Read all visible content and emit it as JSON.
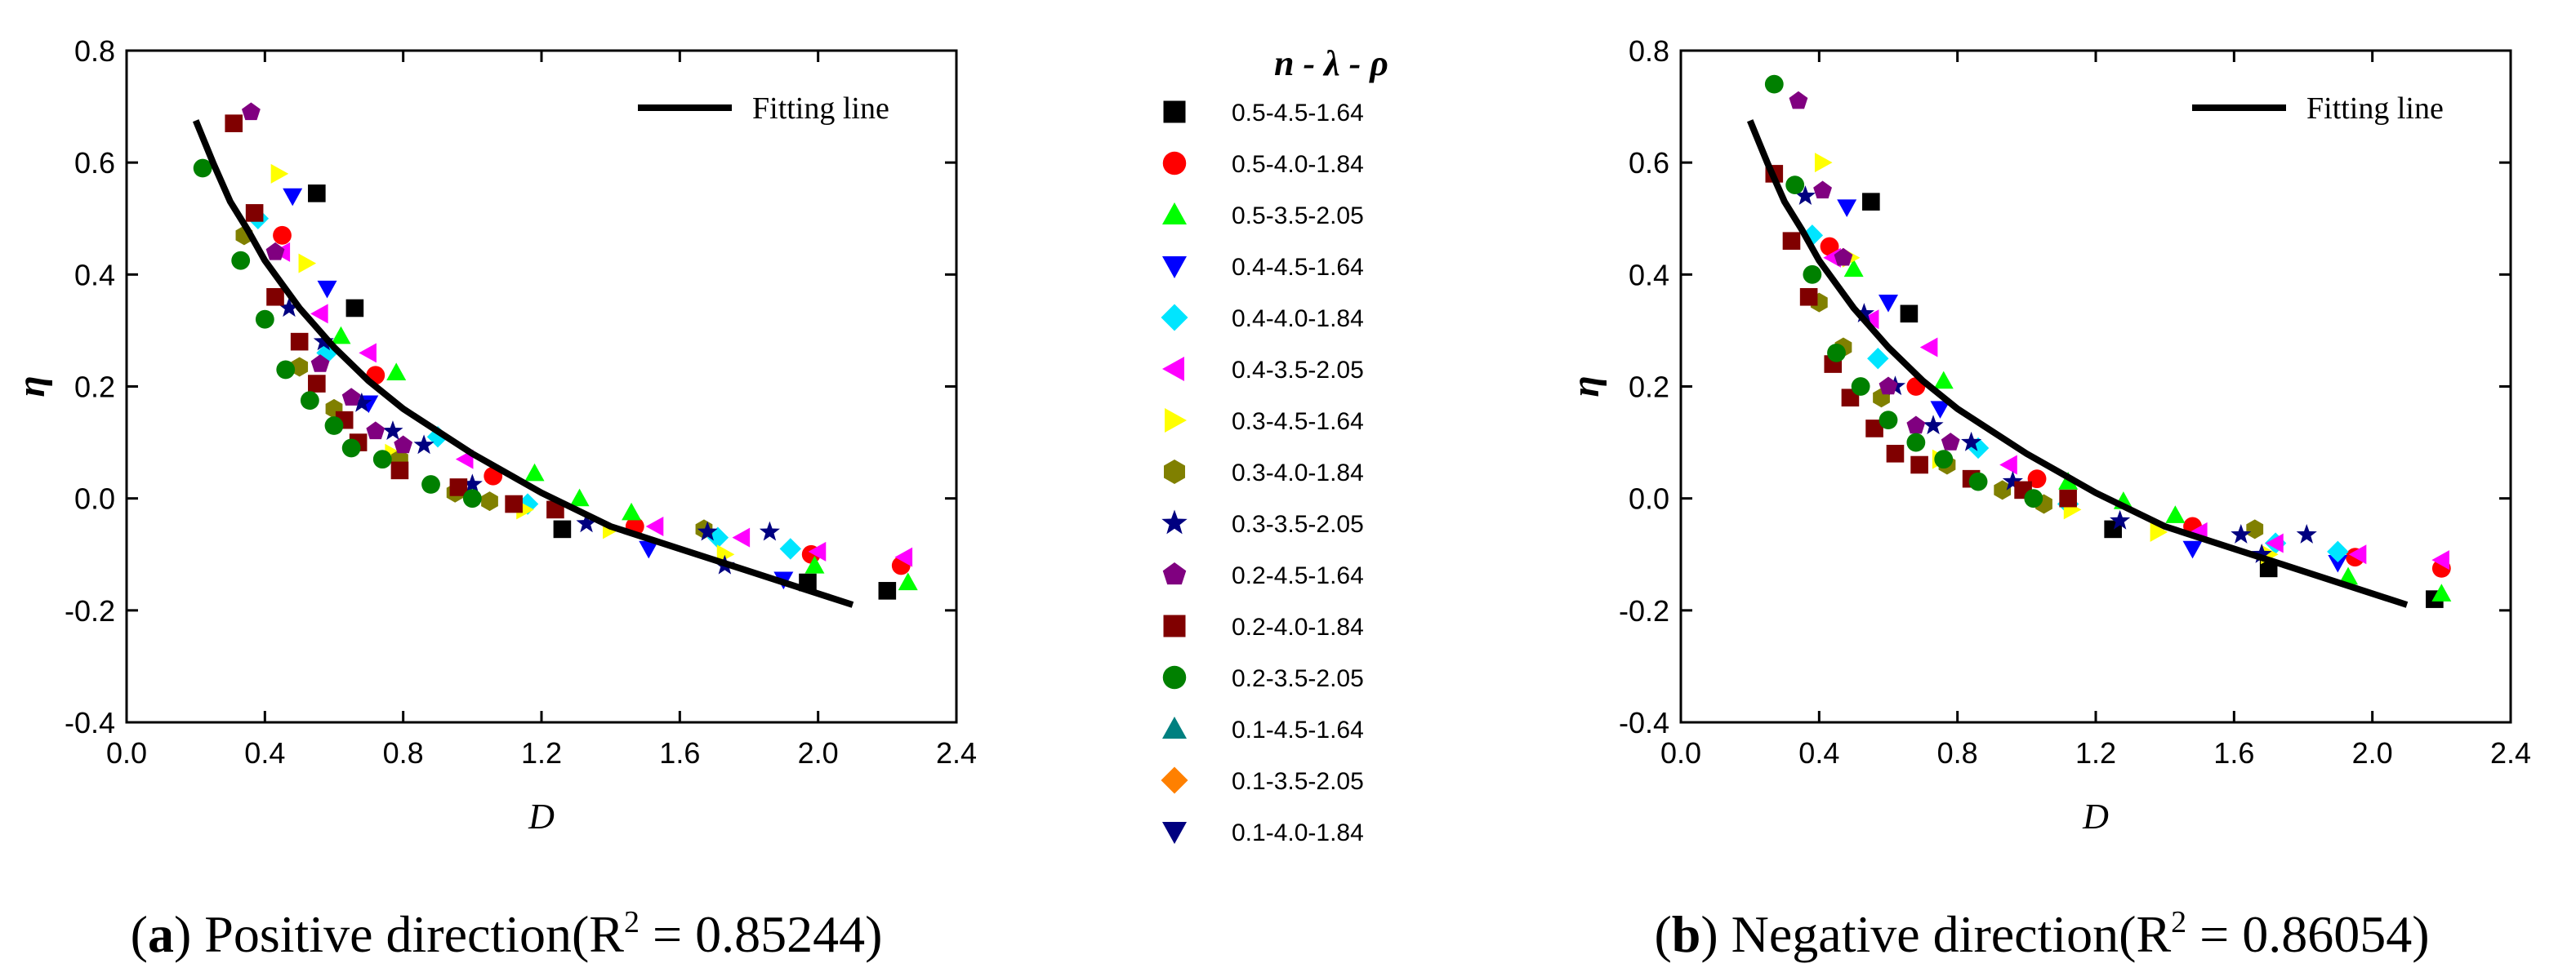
{
  "chart_data": [
    {
      "id": "a",
      "type": "scatter",
      "title": "",
      "xlabel": "D",
      "ylabel": "η",
      "xlim": [
        0.0,
        2.4
      ],
      "ylim": [
        -0.4,
        0.8
      ],
      "xticks": [
        "0.0",
        "0.4",
        "0.8",
        "1.2",
        "1.6",
        "2.0",
        "2.4"
      ],
      "yticks": [
        "-0.4",
        "-0.2",
        "0.0",
        "0.2",
        "0.4",
        "0.6",
        "0.8"
      ],
      "fit_legend_label": "Fitting line",
      "caption": {
        "letter": "a",
        "text": "Positive direction(R",
        "sup": "2",
        "tail": " = 0.85244)"
      },
      "fit_line": {
        "x": [
          0.2,
          0.25,
          0.3,
          0.35,
          0.4,
          0.5,
          0.6,
          0.7,
          0.8,
          0.9,
          1.0,
          1.2,
          1.4,
          1.6,
          1.8,
          2.0,
          2.1
        ],
        "y": [
          0.675,
          0.6,
          0.53,
          0.48,
          0.425,
          0.34,
          0.27,
          0.21,
          0.16,
          0.12,
          0.08,
          0.01,
          -0.05,
          -0.09,
          -0.13,
          -0.17,
          -0.19
        ]
      },
      "series": [
        {
          "name": "0.5-4.5-1.64",
          "x": [
            0.55,
            0.66,
            1.26,
            1.97,
            2.2
          ],
          "y": [
            0.545,
            0.34,
            -0.055,
            -0.15,
            -0.165
          ]
        },
        {
          "name": "0.5-4.0-1.84",
          "x": [
            0.45,
            0.72,
            1.06,
            1.47,
            1.98,
            2.24
          ],
          "y": [
            0.47,
            0.22,
            0.04,
            -0.05,
            -0.1,
            -0.12
          ]
        },
        {
          "name": "0.5-3.5-2.05",
          "x": [
            0.62,
            0.78,
            1.18,
            1.31,
            1.46,
            1.99,
            2.26
          ],
          "y": [
            0.29,
            0.225,
            0.045,
            0.0,
            -0.025,
            -0.12,
            -0.15
          ]
        },
        {
          "name": "0.4-4.5-1.64",
          "x": [
            0.48,
            0.58,
            0.7,
            1.51,
            1.9
          ],
          "y": [
            0.54,
            0.375,
            0.17,
            -0.09,
            -0.145
          ]
        },
        {
          "name": "0.4-4.0-1.84",
          "x": [
            0.38,
            0.58,
            0.9,
            1.16,
            1.71,
            1.92
          ],
          "y": [
            0.5,
            0.26,
            0.11,
            -0.01,
            -0.07,
            -0.09
          ]
        },
        {
          "name": "0.4-3.5-2.05",
          "x": [
            0.45,
            0.56,
            0.7,
            0.98,
            1.53,
            1.78,
            2.0,
            2.25
          ],
          "y": [
            0.44,
            0.33,
            0.26,
            0.07,
            -0.05,
            -0.07,
            -0.095,
            -0.105
          ]
        },
        {
          "name": "0.3-4.5-1.64",
          "x": [
            0.44,
            0.52,
            0.77,
            1.15,
            1.4,
            1.73
          ],
          "y": [
            0.58,
            0.42,
            0.08,
            -0.02,
            -0.055,
            -0.1
          ]
        },
        {
          "name": "0.3-4.0-1.84",
          "x": [
            0.34,
            0.5,
            0.6,
            0.79,
            0.95,
            1.05,
            1.67
          ],
          "y": [
            0.47,
            0.235,
            0.16,
            0.07,
            0.01,
            -0.005,
            -0.055
          ]
        },
        {
          "name": "0.3-3.5-2.05",
          "x": [
            0.47,
            0.57,
            0.68,
            0.77,
            0.86,
            1.0,
            1.33,
            1.68,
            1.73,
            1.86
          ],
          "y": [
            0.34,
            0.28,
            0.17,
            0.12,
            0.095,
            0.025,
            -0.045,
            -0.06,
            -0.12,
            -0.06
          ]
        },
        {
          "name": "0.2-4.5-1.64",
          "x": [
            0.36,
            0.43,
            0.56,
            0.65,
            0.72,
            0.8
          ],
          "y": [
            0.69,
            0.44,
            0.24,
            0.18,
            0.12,
            0.095
          ]
        },
        {
          "name": "0.2-4.0-1.84",
          "x": [
            0.31,
            0.37,
            0.43,
            0.5,
            0.55,
            0.63,
            0.67,
            0.79,
            0.96,
            1.12,
            1.24
          ],
          "y": [
            0.67,
            0.51,
            0.36,
            0.28,
            0.205,
            0.14,
            0.1,
            0.05,
            0.02,
            -0.01,
            -0.02
          ]
        },
        {
          "name": "0.2-3.5-2.05",
          "x": [
            0.22,
            0.33,
            0.4,
            0.46,
            0.53,
            0.6,
            0.65,
            0.74,
            0.88,
            1.0
          ],
          "y": [
            0.59,
            0.425,
            0.32,
            0.23,
            0.175,
            0.13,
            0.09,
            0.07,
            0.025,
            0.0
          ]
        },
        {
          "name": "0.1-4.5-1.64",
          "x": [],
          "y": []
        },
        {
          "name": "0.1-3.5-2.05",
          "x": [],
          "y": []
        },
        {
          "name": "0.1-4.0-1.84",
          "x": [],
          "y": []
        }
      ]
    },
    {
      "id": "b",
      "type": "scatter",
      "title": "",
      "xlabel": "D",
      "ylabel": "η",
      "xlim": [
        0.0,
        2.4
      ],
      "ylim": [
        -0.4,
        0.8
      ],
      "xticks": [
        "0.0",
        "0.4",
        "0.8",
        "1.2",
        "1.6",
        "2.0",
        "2.4"
      ],
      "yticks": [
        "-0.4",
        "-0.2",
        "0.0",
        "0.2",
        "0.4",
        "0.6",
        "0.8"
      ],
      "fit_legend_label": "Fitting line",
      "caption": {
        "letter": "b",
        "text": "Negative direction(R",
        "sup": "2",
        "tail": " = 0.86054)"
      },
      "fit_line": {
        "x": [
          0.2,
          0.25,
          0.3,
          0.35,
          0.4,
          0.5,
          0.6,
          0.7,
          0.8,
          0.9,
          1.0,
          1.2,
          1.4,
          1.6,
          1.8,
          2.0,
          2.1
        ],
        "y": [
          0.675,
          0.6,
          0.53,
          0.48,
          0.425,
          0.34,
          0.27,
          0.21,
          0.16,
          0.12,
          0.08,
          0.01,
          -0.05,
          -0.09,
          -0.13,
          -0.17,
          -0.19
        ]
      },
      "series": [
        {
          "name": "0.5-4.5-1.64",
          "x": [
            0.55,
            0.66,
            1.25,
            1.7,
            2.18
          ],
          "y": [
            0.53,
            0.33,
            -0.055,
            -0.125,
            -0.18
          ]
        },
        {
          "name": "0.5-4.0-1.84",
          "x": [
            0.43,
            0.68,
            1.03,
            1.48,
            1.95,
            2.2
          ],
          "y": [
            0.45,
            0.2,
            0.035,
            -0.05,
            -0.105,
            -0.125
          ]
        },
        {
          "name": "0.5-3.5-2.05",
          "x": [
            0.5,
            0.76,
            1.12,
            1.28,
            1.43,
            1.93,
            2.2
          ],
          "y": [
            0.41,
            0.21,
            0.03,
            -0.005,
            -0.03,
            -0.14,
            -0.17
          ]
        },
        {
          "name": "0.4-4.5-1.64",
          "x": [
            0.48,
            0.6,
            0.75,
            1.48,
            1.9
          ],
          "y": [
            0.52,
            0.35,
            0.16,
            -0.09,
            -0.115
          ]
        },
        {
          "name": "0.4-4.0-1.84",
          "x": [
            0.38,
            0.57,
            0.86,
            1.12,
            1.72,
            1.9
          ],
          "y": [
            0.47,
            0.25,
            0.09,
            -0.01,
            -0.08,
            -0.095
          ]
        },
        {
          "name": "0.4-3.5-2.05",
          "x": [
            0.44,
            0.55,
            0.72,
            0.95,
            1.5,
            1.72,
            1.96,
            2.2
          ],
          "y": [
            0.43,
            0.32,
            0.27,
            0.06,
            -0.06,
            -0.08,
            -0.1,
            -0.11
          ]
        },
        {
          "name": "0.3-4.5-1.64",
          "x": [
            0.41,
            0.49,
            0.75,
            1.13,
            1.38,
            1.7
          ],
          "y": [
            0.6,
            0.43,
            0.07,
            -0.02,
            -0.06,
            -0.1
          ]
        },
        {
          "name": "0.3-4.0-1.84",
          "x": [
            0.4,
            0.47,
            0.58,
            0.77,
            0.93,
            1.05,
            1.66
          ],
          "y": [
            0.35,
            0.27,
            0.18,
            0.06,
            0.015,
            -0.01,
            -0.055
          ]
        },
        {
          "name": "0.3-3.5-2.05",
          "x": [
            0.36,
            0.53,
            0.62,
            0.73,
            0.84,
            0.96,
            1.27,
            1.62,
            1.68,
            1.81
          ],
          "y": [
            0.54,
            0.33,
            0.2,
            0.13,
            0.1,
            0.03,
            -0.04,
            -0.065,
            -0.1,
            -0.065
          ]
        },
        {
          "name": "0.2-4.5-1.64",
          "x": [
            0.34,
            0.41,
            0.47,
            0.6,
            0.68,
            0.78
          ],
          "y": [
            0.71,
            0.55,
            0.43,
            0.2,
            0.13,
            0.1
          ]
        },
        {
          "name": "0.2-4.0-1.84",
          "x": [
            0.27,
            0.32,
            0.37,
            0.44,
            0.49,
            0.56,
            0.62,
            0.69,
            0.84,
            0.99,
            1.12
          ],
          "y": [
            0.58,
            0.46,
            0.36,
            0.24,
            0.18,
            0.125,
            0.08,
            0.06,
            0.035,
            0.015,
            0.0
          ]
        },
        {
          "name": "0.2-3.5-2.05",
          "x": [
            0.27,
            0.33,
            0.38,
            0.45,
            0.52,
            0.6,
            0.68,
            0.76,
            0.86,
            1.02
          ],
          "y": [
            0.74,
            0.56,
            0.4,
            0.26,
            0.2,
            0.14,
            0.1,
            0.07,
            0.03,
            0.0
          ]
        },
        {
          "name": "0.1-4.5-1.64",
          "x": [],
          "y": []
        },
        {
          "name": "0.1-3.5-2.05",
          "x": [],
          "y": []
        },
        {
          "name": "0.1-4.0-1.84",
          "x": [],
          "y": []
        }
      ]
    }
  ],
  "legend": {
    "title": "n - λ - ρ",
    "items": [
      {
        "label": "0.5-4.5-1.64",
        "color": "#000000",
        "marker": "square"
      },
      {
        "label": "0.5-4.0-1.84",
        "color": "#ff0000",
        "marker": "circle"
      },
      {
        "label": "0.5-3.5-2.05",
        "color": "#00ff00",
        "marker": "triangle-up"
      },
      {
        "label": "0.4-4.5-1.64",
        "color": "#0000ff",
        "marker": "triangle-down"
      },
      {
        "label": "0.4-4.0-1.84",
        "color": "#00e5ff",
        "marker": "diamond"
      },
      {
        "label": "0.4-3.5-2.05",
        "color": "#ff00ff",
        "marker": "triangle-left"
      },
      {
        "label": "0.3-4.5-1.64",
        "color": "#ffff00",
        "marker": "triangle-right"
      },
      {
        "label": "0.3-4.0-1.84",
        "color": "#808000",
        "marker": "hexagon"
      },
      {
        "label": "0.3-3.5-2.05",
        "color": "#000080",
        "marker": "star"
      },
      {
        "label": "0.2-4.5-1.64",
        "color": "#800080",
        "marker": "pentagon"
      },
      {
        "label": "0.2-4.0-1.84",
        "color": "#800000",
        "marker": "square"
      },
      {
        "label": "0.2-3.5-2.05",
        "color": "#008000",
        "marker": "circle"
      },
      {
        "label": "0.1-4.5-1.64",
        "color": "#008080",
        "marker": "triangle-up"
      },
      {
        "label": "0.1-3.5-2.05",
        "color": "#ff8000",
        "marker": "diamond"
      },
      {
        "label": "0.1-4.0-1.84",
        "color": "#000080",
        "marker": "triangle-down"
      }
    ]
  }
}
